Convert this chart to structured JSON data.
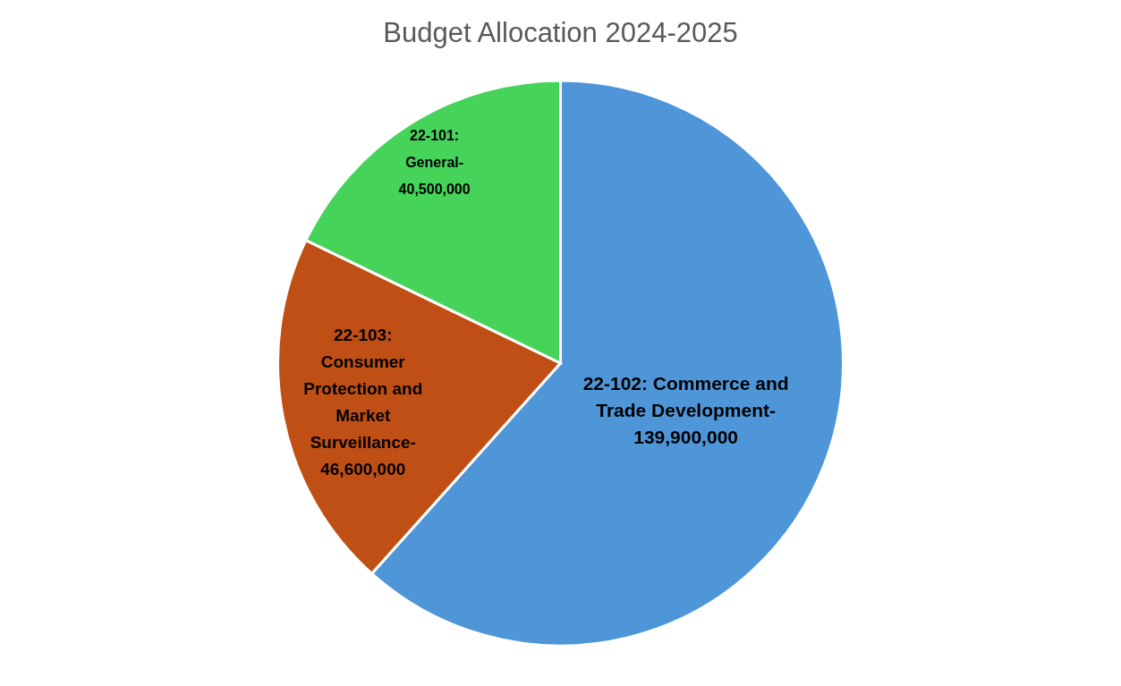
{
  "chart_data": {
    "type": "pie",
    "title": "Budget Allocation 2024-2025",
    "categories": [
      "22-102: Commerce and Trade Development-",
      "22-103: Consumer Protection and Market Surveillance-",
      "22-101: General-"
    ],
    "values": [
      139900000,
      46600000,
      40500000
    ],
    "colors": [
      "#4f96d9",
      "#c04f15",
      "#46d35a"
    ],
    "value_labels": [
      "139,900,000",
      "46,600,000",
      "40,500,000"
    ],
    "legend": false
  }
}
